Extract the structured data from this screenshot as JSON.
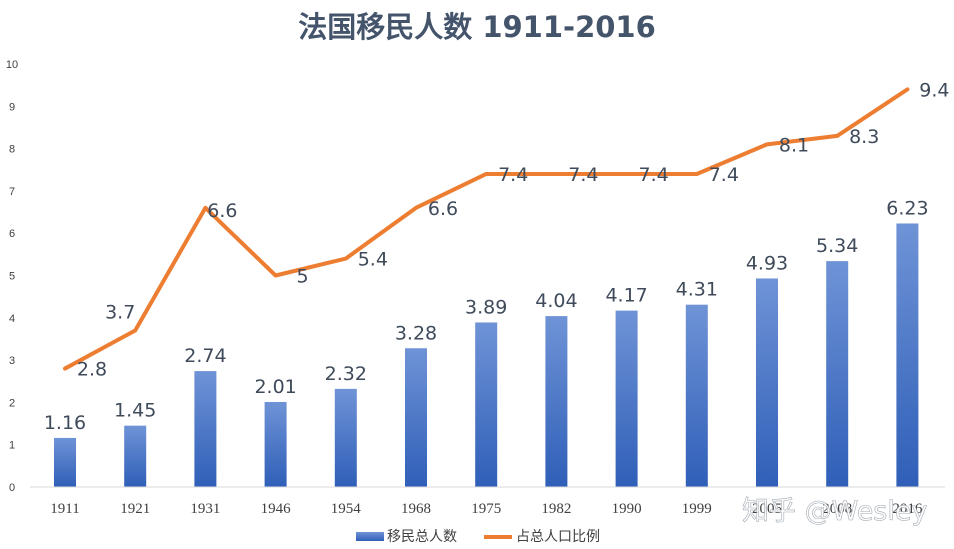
{
  "chart_data": {
    "type": "bar",
    "title": "法国移民人数 1911-2016",
    "categories": [
      "1911",
      "1921",
      "1931",
      "1946",
      "1954",
      "1968",
      "1975",
      "1982",
      "1990",
      "1999",
      "2005",
      "2008",
      "2016"
    ],
    "series": [
      {
        "name": "移民总人数",
        "type": "bar",
        "color": "#4472c4",
        "values": [
          1.16,
          1.45,
          2.74,
          2.01,
          2.32,
          3.28,
          3.89,
          4.04,
          4.17,
          4.31,
          4.93,
          5.34,
          6.23
        ],
        "labels": [
          "1.16",
          "1.45",
          "2.74",
          "2.01",
          "2.32",
          "3.28",
          "3.89",
          "4.04",
          "4.17",
          "4.31",
          "4.93",
          "5.34",
          "6.23"
        ]
      },
      {
        "name": "占总人口比例",
        "type": "line",
        "color": "#ed7d31",
        "values": [
          2.8,
          3.7,
          6.6,
          5,
          5.4,
          6.6,
          7.4,
          7.4,
          7.4,
          7.4,
          8.1,
          8.3,
          9.4
        ],
        "labels": [
          "2.8",
          "3.7",
          "6.6",
          "5",
          "5.4",
          "6.6",
          "7.4",
          "7.4",
          "7.4",
          "7.4",
          "8.1",
          "8.3",
          "9.4"
        ]
      }
    ],
    "ylim": [
      0,
      10
    ],
    "yticks": [
      "0",
      "1",
      "2",
      "3",
      "4",
      "5",
      "6",
      "7",
      "8",
      "9",
      "10"
    ],
    "grid": false,
    "legend": "bottom"
  },
  "watermark": "知乎 @Wesley"
}
